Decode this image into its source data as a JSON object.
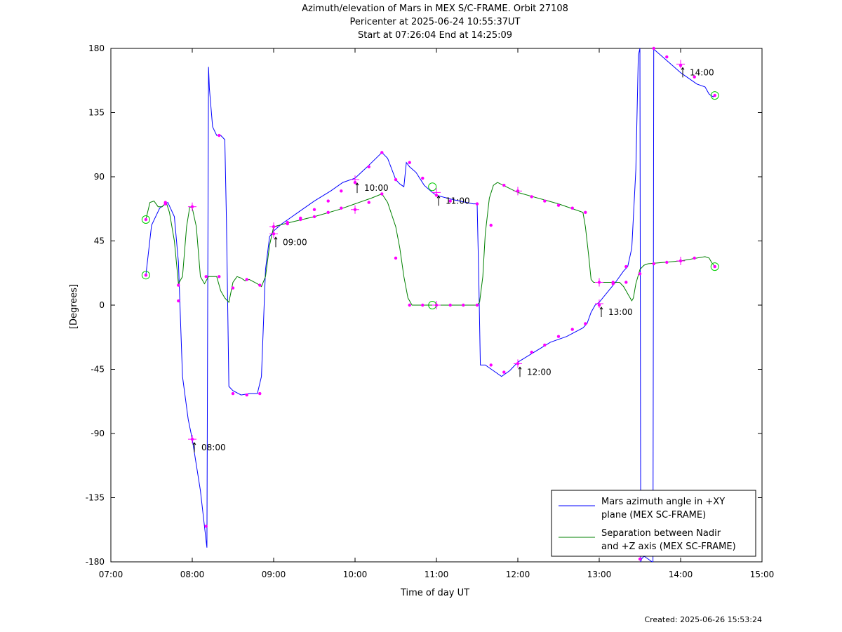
{
  "chart_data": {
    "type": "line",
    "title": [
      "Azimuth/elevation of Mars in MEX S/C-FRAME.  Orbit 27108",
      "Pericenter at 2025-06-24 10:55:37UT",
      "Start at 07:26:04 End at 14:25:09"
    ],
    "xlabel": "Time of day UT",
    "ylabel": "[Degrees]",
    "xlim": [
      7.0,
      15.0
    ],
    "ylim": [
      -180,
      180
    ],
    "x_ticks": [
      7,
      8,
      9,
      10,
      11,
      12,
      13,
      14,
      15
    ],
    "x_tick_labels": [
      "07:00",
      "08:00",
      "09:00",
      "10:00",
      "11:00",
      "12:00",
      "13:00",
      "14:00",
      "15:00"
    ],
    "y_ticks": [
      -180,
      -135,
      -90,
      -45,
      0,
      45,
      90,
      135,
      180
    ],
    "y_tick_labels": [
      "-180",
      "-135",
      "-90",
      "-45",
      "0",
      "45",
      "90",
      "135",
      "180"
    ],
    "grid": false,
    "legend_position": "bottom-right",
    "series": [
      {
        "name": "Mars azimuth angle in +XY plane (MEX SC-FRAME)",
        "legend_lines": [
          "Mars azimuth angle in +XY",
          "plane (MEX SC-FRAME)"
        ],
        "color": "#0000ff",
        "x": [
          7.43,
          7.5,
          7.6,
          7.7,
          7.78,
          7.83,
          7.88,
          7.95,
          8.0,
          8.05,
          8.1,
          8.15,
          8.18,
          8.19,
          8.2,
          8.21,
          8.25,
          8.3,
          8.35,
          8.4,
          8.42,
          8.45,
          8.5,
          8.6,
          8.7,
          8.8,
          8.85,
          8.9,
          8.95,
          9.0,
          9.1,
          9.2,
          9.3,
          9.5,
          9.7,
          9.85,
          10.0,
          10.15,
          10.33,
          10.4,
          10.5,
          10.55,
          10.6,
          10.63,
          10.67,
          10.75,
          10.85,
          10.95,
          11.0,
          11.2,
          11.45,
          11.5,
          11.52,
          11.54,
          11.6,
          11.7,
          11.8,
          11.9,
          12.0,
          12.2,
          12.4,
          12.6,
          12.8,
          12.85,
          12.9,
          12.95,
          13.0,
          13.1,
          13.2,
          13.3,
          13.35,
          13.4,
          13.45,
          13.48,
          13.5,
          13.51,
          13.52,
          13.55,
          13.6,
          13.65,
          13.66,
          13.67,
          13.68,
          13.7,
          13.8,
          13.9,
          14.0,
          14.1,
          14.2,
          14.3,
          14.35,
          14.4,
          14.42
        ],
        "y": [
          21,
          56,
          68,
          72,
          62,
          30,
          -50,
          -80,
          -94,
          -112,
          -130,
          -155,
          -170,
          0,
          167,
          152,
          125,
          119,
          119,
          116,
          60,
          -57,
          -60,
          -63,
          -62,
          -62,
          -50,
          25,
          48,
          52,
          57,
          61,
          65,
          73,
          80,
          86,
          89,
          97,
          107,
          103,
          88,
          85,
          83,
          100,
          97,
          93,
          84,
          79,
          77,
          74,
          71,
          71,
          20,
          -42,
          -42,
          -46,
          -50,
          -46,
          -40,
          -33,
          -26,
          -22,
          -16,
          -13,
          -5,
          0,
          2,
          9,
          16,
          24,
          27,
          40,
          95,
          175,
          180,
          -180,
          -178,
          -176,
          -178,
          -180,
          -180,
          180,
          179,
          178,
          173,
          168,
          163,
          159,
          155,
          153,
          148,
          146,
          147
        ],
        "marker_x": [
          7.43,
          7.67,
          7.83,
          8.0,
          8.17,
          8.33,
          8.5,
          8.67,
          8.83,
          9.0,
          9.17,
          9.33,
          9.5,
          9.67,
          9.83,
          10.0,
          10.17,
          10.33,
          10.5,
          10.67,
          10.83,
          11.0,
          11.17,
          11.5,
          11.67,
          11.83,
          12.0,
          12.17,
          12.33,
          12.5,
          12.67,
          12.83,
          13.0,
          13.17,
          13.33,
          13.5,
          13.67,
          13.83,
          14.0,
          14.17,
          14.42
        ],
        "marker_y": [
          21,
          72,
          3,
          -94,
          -155,
          119,
          -62,
          -63,
          -62,
          50,
          57,
          61,
          67,
          73,
          80,
          86,
          97,
          107,
          88,
          100,
          89,
          77,
          73,
          71,
          -42,
          -47,
          -41,
          -33,
          -28,
          -22,
          -17,
          -13,
          0,
          15,
          27,
          -178,
          180,
          174,
          168,
          160,
          147
        ],
        "hour_marks": [
          {
            "x": 8.0,
            "y": -94,
            "label": "08:00"
          },
          {
            "x": 9.0,
            "y": 50,
            "label": "09:00"
          },
          {
            "x": 10.0,
            "y": 88,
            "label": "10:00"
          },
          {
            "x": 11.0,
            "y": 79,
            "label": "11:00"
          },
          {
            "x": 12.0,
            "y": -41,
            "label": "12:00"
          },
          {
            "x": 13.0,
            "y": 1,
            "label": "13:00"
          },
          {
            "x": 14.0,
            "y": 169,
            "label": "14:00"
          }
        ],
        "circle_marks": [
          {
            "x": 7.43,
            "y": 21
          },
          {
            "x": 10.95,
            "y": 83
          },
          {
            "x": 14.42,
            "y": 147
          }
        ]
      },
      {
        "name": "Separation between Nadir and +Z axis (MEX SC-FRAME)",
        "legend_lines": [
          "Separation between Nadir",
          "and +Z axis (MEX SC-FRAME)"
        ],
        "color": "#008000",
        "x": [
          7.43,
          7.48,
          7.53,
          7.58,
          7.63,
          7.68,
          7.72,
          7.78,
          7.83,
          7.88,
          7.93,
          7.97,
          8.0,
          8.05,
          8.1,
          8.15,
          8.2,
          8.25,
          8.3,
          8.35,
          8.4,
          8.45,
          8.5,
          8.55,
          8.6,
          8.65,
          8.7,
          8.8,
          8.85,
          8.9,
          8.95,
          9.0,
          9.2,
          9.5,
          9.8,
          10.0,
          10.2,
          10.33,
          10.4,
          10.5,
          10.55,
          10.6,
          10.65,
          10.7,
          11.0,
          11.3,
          11.5,
          11.53,
          11.57,
          11.6,
          11.65,
          11.7,
          11.75,
          12.0,
          12.5,
          12.8,
          12.83,
          12.87,
          12.9,
          12.93,
          12.97,
          13.0,
          13.1,
          13.2,
          13.25,
          13.3,
          13.35,
          13.4,
          13.42,
          13.45,
          13.5,
          13.55,
          13.6,
          13.8,
          14.0,
          14.2,
          14.3,
          14.35,
          14.38,
          14.42
        ],
        "y": [
          60,
          72,
          73,
          69,
          69,
          72,
          65,
          45,
          15,
          20,
          55,
          69,
          68,
          55,
          20,
          15,
          20,
          20,
          20,
          10,
          5,
          2,
          16,
          20,
          19,
          17,
          18,
          15,
          13,
          20,
          42,
          55,
          58,
          62,
          67,
          71,
          75,
          78,
          72,
          55,
          40,
          20,
          5,
          0,
          0,
          0,
          0,
          2,
          20,
          50,
          75,
          84,
          86,
          79,
          71,
          65,
          55,
          35,
          18,
          16,
          16,
          16,
          16,
          16,
          16,
          13,
          8,
          3,
          5,
          15,
          25,
          28,
          29,
          30,
          31,
          33,
          34,
          33,
          30,
          27
        ],
        "marker_x": [
          7.43,
          7.67,
          7.83,
          8.0,
          8.17,
          8.33,
          8.5,
          8.67,
          8.83,
          9.0,
          9.17,
          9.33,
          9.5,
          9.67,
          9.83,
          10.0,
          10.17,
          10.33,
          10.5,
          10.67,
          10.83,
          11.0,
          11.17,
          11.33,
          11.5,
          11.67,
          11.83,
          12.0,
          12.17,
          12.33,
          12.5,
          12.67,
          12.83,
          13.0,
          13.17,
          13.33,
          13.5,
          13.67,
          13.83,
          14.0,
          14.17,
          14.42
        ],
        "marker_y": [
          60,
          71,
          14,
          69,
          20,
          20,
          12,
          18,
          14,
          55,
          58,
          60,
          62,
          65,
          68,
          67,
          72,
          78,
          33,
          0,
          0,
          0,
          0,
          0,
          0,
          56,
          84,
          80,
          76,
          73,
          70,
          68,
          65,
          16,
          16,
          16,
          22,
          29,
          30,
          31,
          33,
          27
        ],
        "hour_marks": [
          {
            "x": 8.0,
            "y": 69
          },
          {
            "x": 9.0,
            "y": 55
          },
          {
            "x": 10.0,
            "y": 67
          },
          {
            "x": 11.0,
            "y": 0
          },
          {
            "x": 12.0,
            "y": 80
          },
          {
            "x": 13.0,
            "y": 16
          },
          {
            "x": 14.0,
            "y": 31
          }
        ],
        "circle_marks": [
          {
            "x": 7.43,
            "y": 60
          },
          {
            "x": 10.95,
            "y": 0
          },
          {
            "x": 14.42,
            "y": 27
          }
        ]
      }
    ]
  },
  "footer": {
    "created": "Created: 2025-06-26 15:53:24"
  }
}
